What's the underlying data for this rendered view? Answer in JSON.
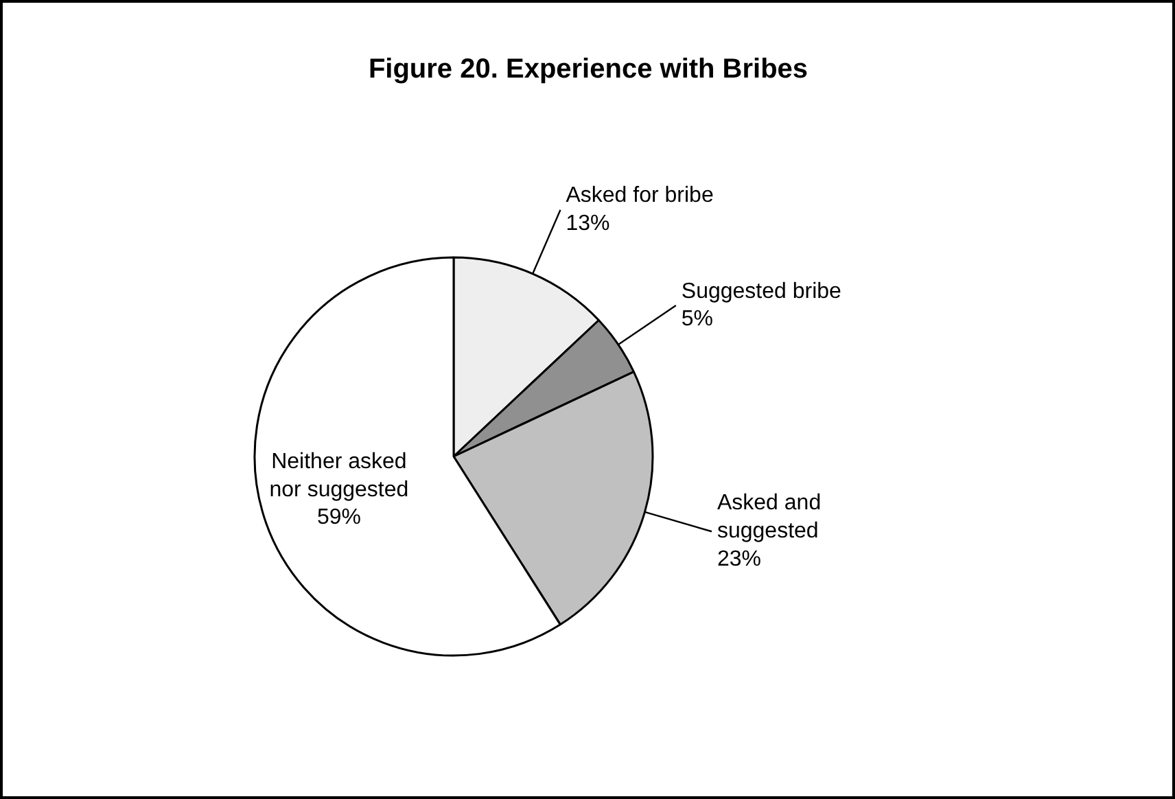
{
  "chart_data": {
    "type": "pie",
    "title": "Figure 20. Experience with Bribes",
    "categories": [
      "Asked for bribe",
      "Suggested bribe",
      "Asked and suggested",
      "Neither asked nor suggested"
    ],
    "values": [
      13,
      5,
      23,
      59
    ],
    "value_labels": [
      "13%",
      "5%",
      "23%",
      "59%"
    ],
    "colors": [
      "#eeeeee",
      "#909090",
      "#c0c0c0",
      "#ffffff"
    ]
  }
}
